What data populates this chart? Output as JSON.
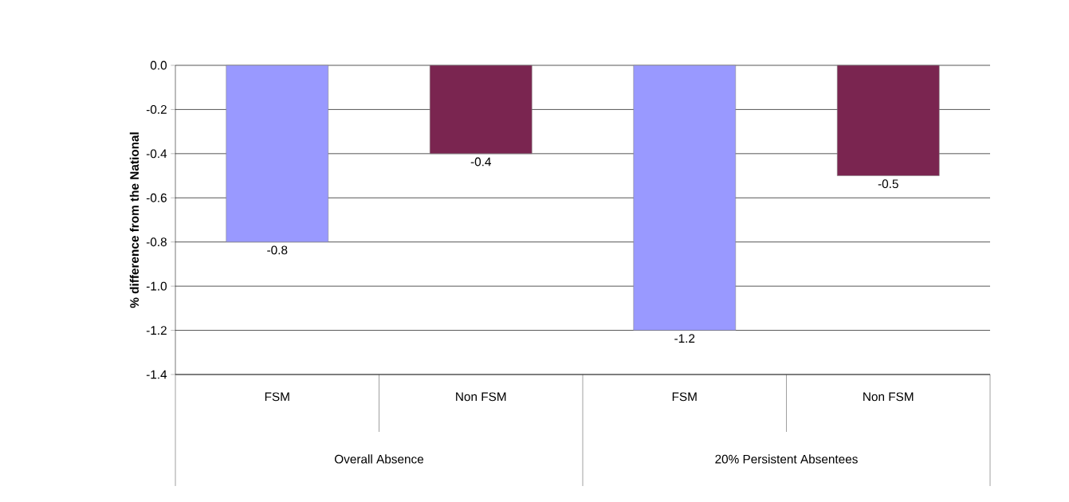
{
  "chart_data": {
    "type": "bar",
    "ylabel": "% difference from the National",
    "categories": [
      "FSM",
      "Non FSM",
      "FSM",
      "Non FSM"
    ],
    "values": [
      -0.8,
      -0.4,
      -1.2,
      -0.5
    ],
    "colors": [
      "#9999ff",
      "#7a2550",
      "#9999ff",
      "#7a2550"
    ],
    "ylim": [
      -1.4,
      0
    ],
    "yticks": [
      {
        "value": -1.4,
        "label": "-1.4"
      },
      {
        "value": -1.2,
        "label": "-1.2"
      },
      {
        "value": -1.0,
        "label": "-1.0"
      },
      {
        "value": -0.8,
        "label": "-0.8"
      },
      {
        "value": -0.6,
        "label": "-0.6"
      },
      {
        "value": -0.4,
        "label": "-0.4"
      },
      {
        "value": -0.2,
        "label": "-0.2"
      },
      {
        "value": 0,
        "label": "0.0"
      }
    ],
    "grid": "y",
    "data_labels": true,
    "annotations": [
      "Overall Absence",
      "20% Persistent Absentees"
    ]
  }
}
